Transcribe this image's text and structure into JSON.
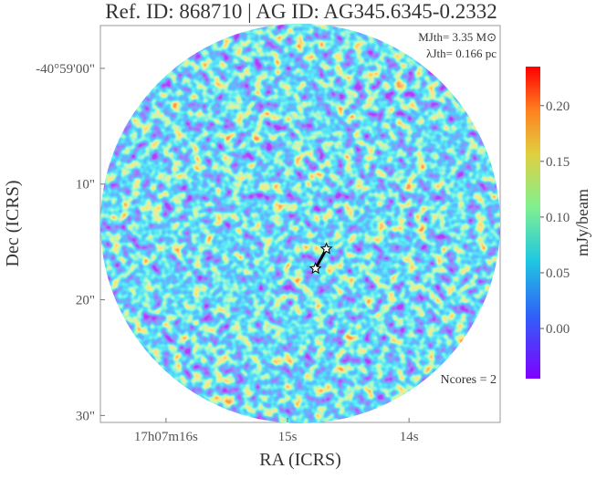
{
  "chart_data": {
    "type": "image",
    "title": "Ref. ID: 868710 | AG ID: AG345.6345-0.2332",
    "xlabel": "RA (ICRS)",
    "ylabel": "Dec (ICRS)",
    "xlim": [
      16.54,
      13.25
    ],
    "ylim": [
      -3.7,
      30.6
    ],
    "xticks": [
      {
        "value": 16,
        "label": "17h07m16s"
      },
      {
        "value": 15,
        "label": "15s"
      },
      {
        "value": 14,
        "label": "14s"
      }
    ],
    "yticks": [
      {
        "value": 0,
        "label": "-40°59'00\""
      },
      {
        "value": 10,
        "label": "10\""
      },
      {
        "value": 20,
        "label": "20\""
      },
      {
        "value": 30,
        "label": "30\""
      }
    ],
    "annotations": [
      "MJth= 3.35 M⊙",
      "λJth= 0.166 pc",
      "Ncores = 2"
    ],
    "cores": {
      "x": [
        14.68,
        14.77
      ],
      "y": [
        15.6,
        17.3
      ],
      "color": "#ffffff"
    },
    "colorbar": {
      "label": "mJy/beam",
      "lim": [
        -0.045,
        0.235
      ],
      "ticks": [
        {
          "value": 0,
          "label": "0.00"
        },
        {
          "value": 0.05,
          "label": "0.05"
        },
        {
          "value": 0.1,
          "label": "0.10"
        },
        {
          "value": 0.15,
          "label": "0.15"
        },
        {
          "value": 0.2,
          "label": "0.20"
        }
      ]
    }
  }
}
